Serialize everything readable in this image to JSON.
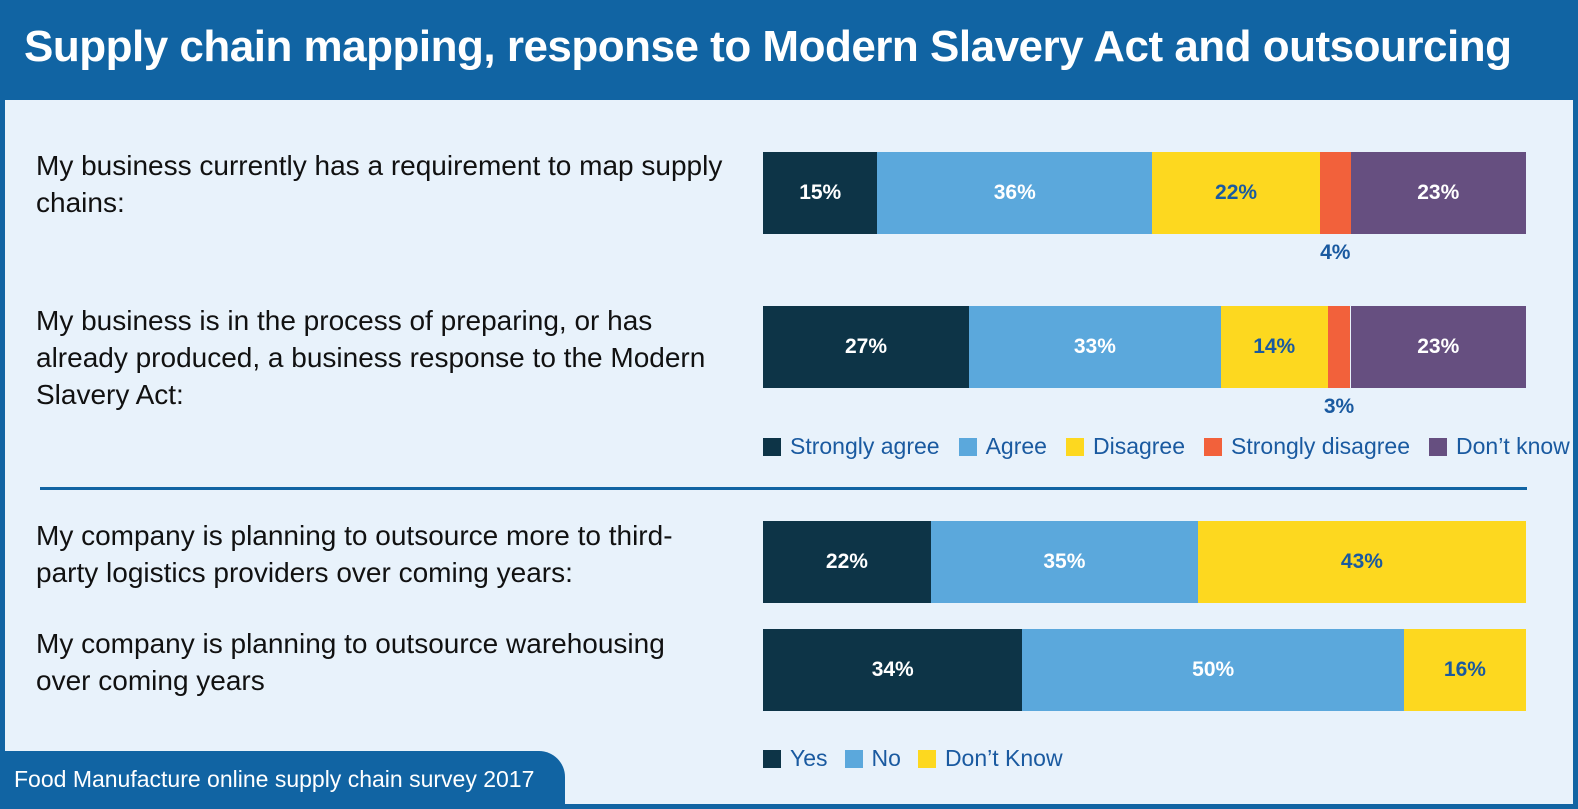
{
  "header": {
    "title": "Supply chain mapping, response to Modern Slavery Act and outsourcing"
  },
  "footer": {
    "source": "Food Manufacture online supply chain survey 2017"
  },
  "colors": {
    "frame": "#1164a3",
    "background": "#e8f2fb",
    "strongly_agree": "#0d3447",
    "agree": "#5ba8dc",
    "disagree": "#fdd81f",
    "strongly_disagree": "#f2613b",
    "dont_know": "#664f80",
    "yes": "#0d3447",
    "no": "#5ba8dc",
    "dont_know_yn": "#fdd81f"
  },
  "chart_data": [
    {
      "type": "bar",
      "orientation": "horizontal-stacked",
      "categories": [
        "My business currently has a requirement to map supply chains:",
        "My business is in the process of preparing, or has already produced, a business response to the Modern Slavery Act:"
      ],
      "series": [
        {
          "name": "Strongly agree",
          "values": [
            15,
            27
          ],
          "labels": [
            "15%",
            "27%"
          ]
        },
        {
          "name": "Agree",
          "values": [
            36,
            33
          ],
          "labels": [
            "36%",
            "33%"
          ]
        },
        {
          "name": "Disagree",
          "values": [
            22,
            14
          ],
          "labels": [
            "22%",
            "14%"
          ]
        },
        {
          "name": "Strongly disagree",
          "values": [
            4,
            3
          ],
          "labels": [
            "4%",
            "3%"
          ]
        },
        {
          "name": "Don’t know",
          "values": [
            23,
            23
          ],
          "labels": [
            "23%",
            "23%"
          ]
        }
      ],
      "legend": [
        "Strongly agree",
        "Agree",
        "Disagree",
        "Strongly disagree",
        "Don’t know"
      ],
      "legend_position": "bottom"
    },
    {
      "type": "bar",
      "orientation": "horizontal-stacked",
      "categories": [
        "My company is planning to outsource more to third-party logistics providers over coming years:",
        "My company is planning to outsource warehousing over coming years"
      ],
      "series": [
        {
          "name": "Yes",
          "values": [
            22,
            34
          ],
          "labels": [
            "22%",
            "34%"
          ]
        },
        {
          "name": "No",
          "values": [
            35,
            50
          ],
          "labels": [
            "35%",
            "50%"
          ]
        },
        {
          "name": "Don’t Know",
          "values": [
            43,
            16
          ],
          "labels": [
            "43%",
            "16%"
          ]
        }
      ],
      "legend": [
        "Yes",
        "No",
        "Don’t Know"
      ],
      "legend_position": "bottom"
    }
  ]
}
